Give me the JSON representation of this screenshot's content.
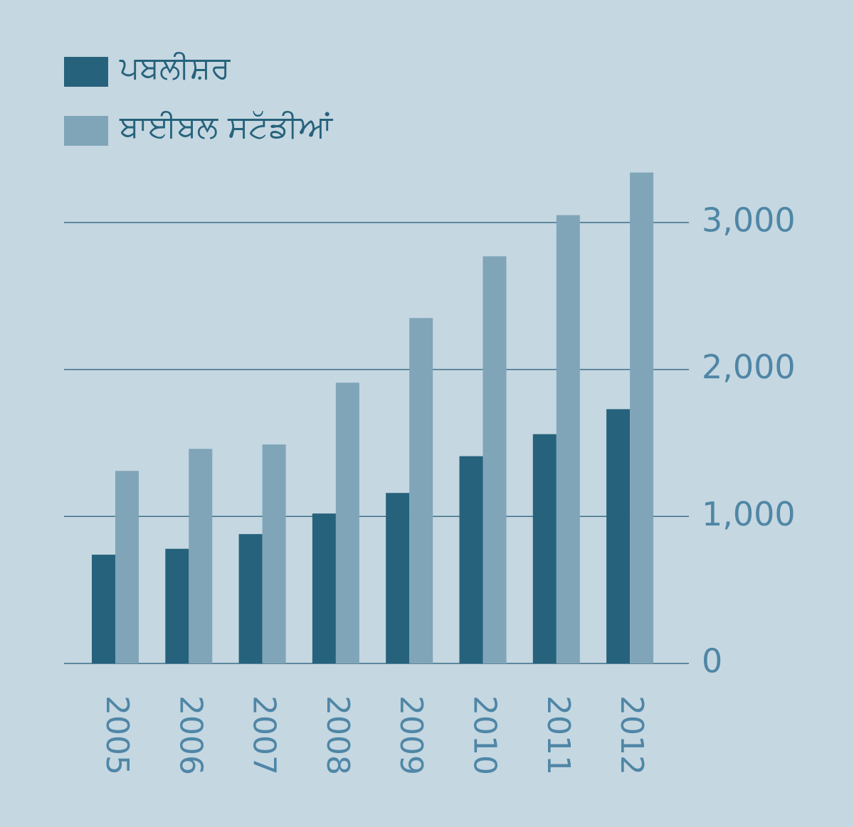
{
  "chart_data": {
    "type": "bar",
    "categories": [
      "2005",
      "2006",
      "2007",
      "2008",
      "2009",
      "2010",
      "2011",
      "2012"
    ],
    "series": [
      {
        "name": "ਪਬਲੀਸ਼ਰ",
        "color": "#26627b",
        "values": [
          740,
          780,
          880,
          1020,
          1160,
          1410,
          1560,
          1730
        ]
      },
      {
        "name": "ਬਾਈਬਲ ਸਟੱਡੀਆਂ",
        "color": "#80a5b9",
        "values": [
          1310,
          1460,
          1490,
          1910,
          2350,
          2770,
          3050,
          3340
        ]
      }
    ],
    "ylim": [
      0,
      3400
    ],
    "yticks": [
      0,
      {
        "value": 1000,
        "label": "1,000"
      },
      {
        "value": 2000,
        "label": "2,000"
      },
      {
        "value": 3000,
        "label": "3,000"
      }
    ],
    "grid": true,
    "legend": "top-left"
  }
}
